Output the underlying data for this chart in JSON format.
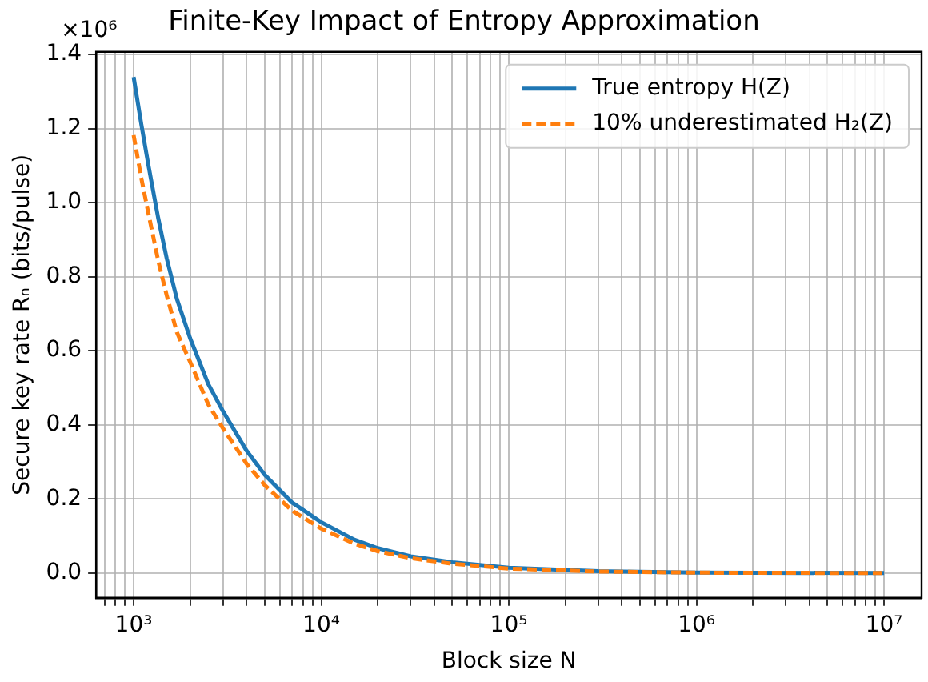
{
  "chart_data": {
    "type": "line",
    "title": "Finite-Key Impact of Entropy Approximation",
    "xlabel": "Block size N",
    "ylabel": "Secure key rate Rₙ (bits/pulse)",
    "annotations": [
      "×10⁶"
    ],
    "x": [
      1000,
      1100,
      1200,
      1350,
      1500,
      1700,
      2000,
      2500,
      3000,
      4000,
      5000,
      7000,
      10000,
      15000,
      20000,
      30000,
      50000,
      100000,
      300000,
      1000000,
      10000000
    ],
    "series": [
      {
        "name": "True entropy H(Z)",
        "color": "#1f77b4",
        "line_style": "solid",
        "values": [
          1.339,
          1.21,
          1.1,
          0.96,
          0.85,
          0.74,
          0.634,
          0.51,
          0.436,
          0.33,
          0.265,
          0.19,
          0.137,
          0.09,
          0.067,
          0.045,
          0.029,
          0.014,
          0.005,
          0.001,
          0
        ]
      },
      {
        "name": "10% underestimated H₂(Z)",
        "color": "#ff7f0e",
        "line_style": "dashed",
        "values": [
          1.182,
          1.065,
          0.97,
          0.845,
          0.75,
          0.65,
          0.57,
          0.455,
          0.39,
          0.295,
          0.237,
          0.168,
          0.12,
          0.079,
          0.059,
          0.04,
          0.025,
          0.012,
          0.004,
          0.001,
          0
        ]
      }
    ],
    "log": "x",
    "xlim": [
      631,
      15850000
    ],
    "ylim": [
      -0.067,
      1.407
    ],
    "xticks": [
      {
        "value": 700,
        "label": null
      },
      {
        "value": 800,
        "label": null
      },
      {
        "value": 900,
        "label": null
      },
      {
        "value": 1000,
        "label": "10³"
      },
      {
        "value": 2000,
        "label": null
      },
      {
        "value": 3000,
        "label": null
      },
      {
        "value": 4000,
        "label": null
      },
      {
        "value": 5000,
        "label": null
      },
      {
        "value": 6000,
        "label": null
      },
      {
        "value": 7000,
        "label": null
      },
      {
        "value": 8000,
        "label": null
      },
      {
        "value": 9000,
        "label": null
      },
      {
        "value": 10000,
        "label": "10⁴"
      },
      {
        "value": 20000,
        "label": null
      },
      {
        "value": 30000,
        "label": null
      },
      {
        "value": 40000,
        "label": null
      },
      {
        "value": 50000,
        "label": null
      },
      {
        "value": 60000,
        "label": null
      },
      {
        "value": 70000,
        "label": null
      },
      {
        "value": 80000,
        "label": null
      },
      {
        "value": 90000,
        "label": null
      },
      {
        "value": 100000,
        "label": "10⁵"
      },
      {
        "value": 200000,
        "label": null
      },
      {
        "value": 300000,
        "label": null
      },
      {
        "value": 400000,
        "label": null
      },
      {
        "value": 500000,
        "label": null
      },
      {
        "value": 600000,
        "label": null
      },
      {
        "value": 700000,
        "label": null
      },
      {
        "value": 800000,
        "label": null
      },
      {
        "value": 900000,
        "label": null
      },
      {
        "value": 1000000,
        "label": "10⁶"
      },
      {
        "value": 2000000,
        "label": null
      },
      {
        "value": 3000000,
        "label": null
      },
      {
        "value": 4000000,
        "label": null
      },
      {
        "value": 5000000,
        "label": null
      },
      {
        "value": 6000000,
        "label": null
      },
      {
        "value": 7000000,
        "label": null
      },
      {
        "value": 8000000,
        "label": null
      },
      {
        "value": 9000000,
        "label": null
      },
      {
        "value": 10000000,
        "label": "10⁷"
      }
    ],
    "yticks": [
      {
        "value": 0,
        "label": "0.0"
      },
      {
        "value": 0.2,
        "label": "0.2"
      },
      {
        "value": 0.4,
        "label": "0.4"
      },
      {
        "value": 0.6,
        "label": "0.6"
      },
      {
        "value": 0.8,
        "label": "0.8"
      },
      {
        "value": 1.0,
        "label": "1.0"
      },
      {
        "value": 1.2,
        "label": "1.2"
      },
      {
        "value": 1.4,
        "label": "1.4"
      }
    ],
    "grid": true,
    "legend": "top right",
    "marker": "none"
  }
}
